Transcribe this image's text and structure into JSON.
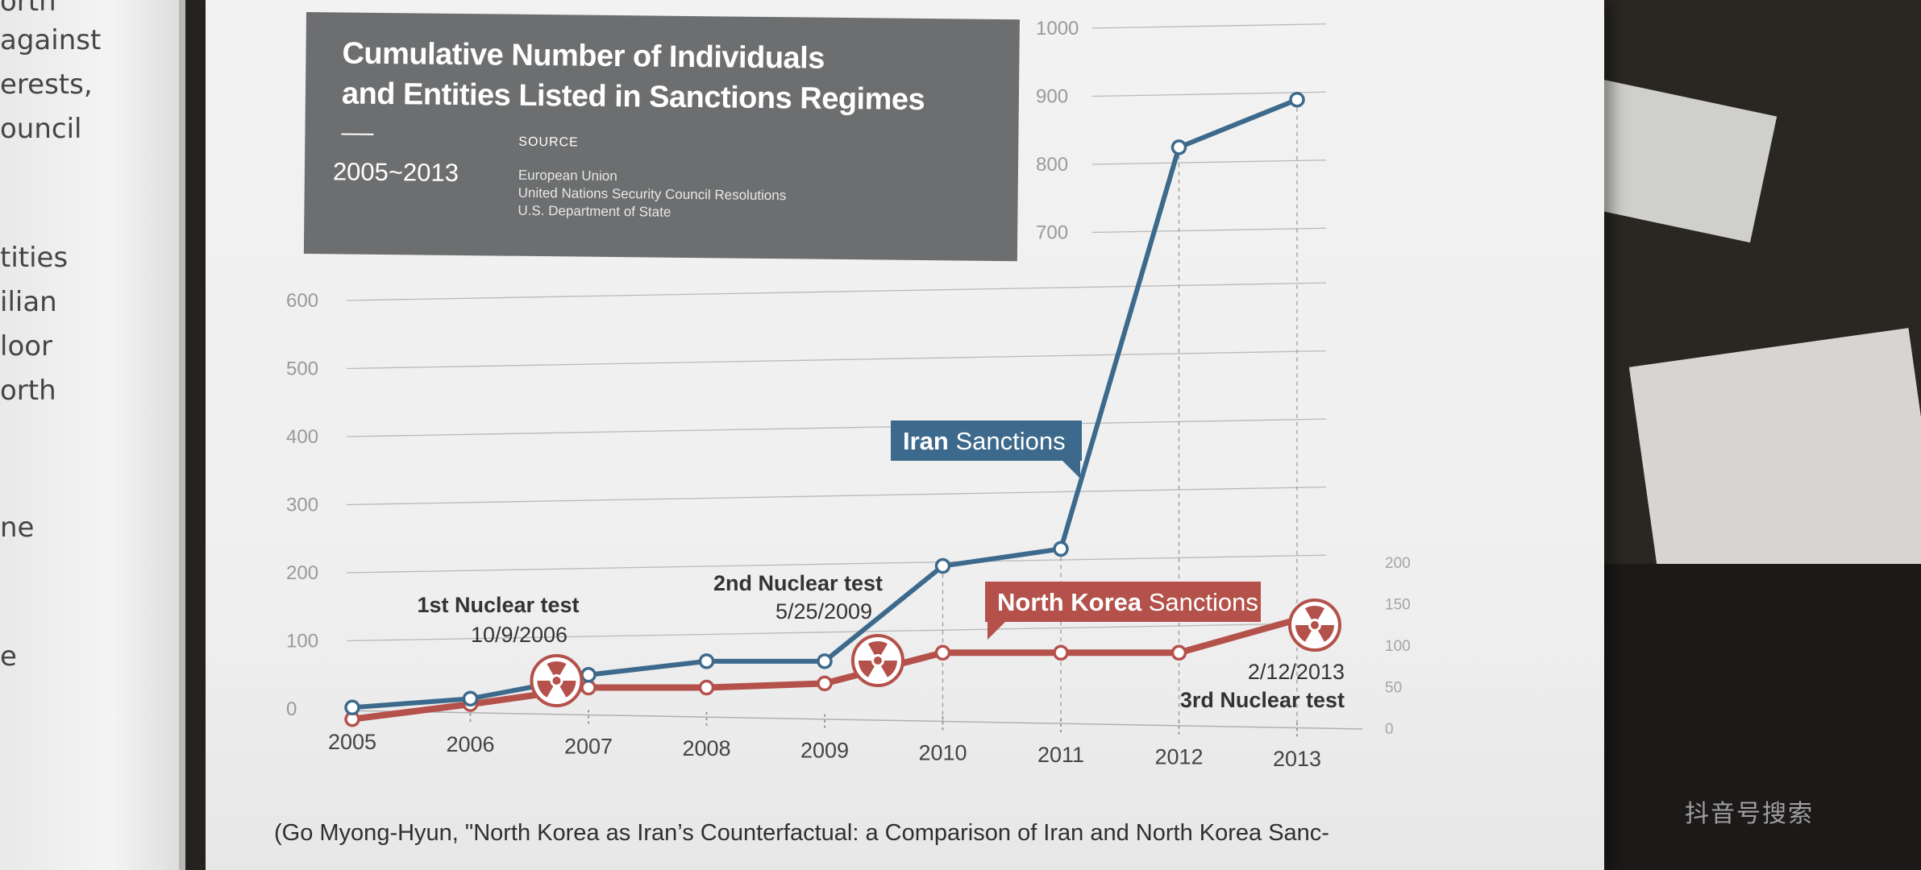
{
  "left_page": {
    "fragments": [
      "orth",
      "against",
      "erests,",
      "ouncil",
      "tities",
      "ilian",
      "loor",
      "orth",
      "ne",
      "e"
    ]
  },
  "title_box": {
    "title_line1": "Cumulative Number of Individuals",
    "title_line2": "and Entities Listed in Sanctions Regimes",
    "years": "2005~2013",
    "source_label": "SOURCE",
    "sources": [
      "European Union",
      "United Nations Security Council Resolutions",
      "U.S. Department of State"
    ]
  },
  "caption": "(Go Myong-Hyun, \"North Korea as Iran’s Counterfactual: a Comparison of Iran and North Korea Sanc-",
  "watermark": "抖音号搜索",
  "colors": {
    "iran": "#3d6a8c",
    "north_korea": "#b4514b",
    "title_box": "#6d6e6f",
    "nuke_icon": "#b4514b"
  },
  "chart_data": {
    "type": "line",
    "title": "Cumulative Number of Individuals and Entities Listed in Sanctions Regimes",
    "x": [
      2005,
      2006,
      2007,
      2008,
      2009,
      2010,
      2011,
      2012,
      2013
    ],
    "x_ticks": [
      "2005",
      "2006",
      "2007",
      "2008",
      "2009",
      "2010",
      "2011",
      "2012",
      "2013"
    ],
    "left_axis": {
      "ticks": [
        0,
        100,
        200,
        300,
        400,
        500,
        600,
        700,
        800,
        900,
        1000
      ],
      "range": [
        0,
        1000
      ]
    },
    "right_axis": {
      "ticks": [
        0,
        50,
        100,
        150,
        200
      ],
      "range": [
        0,
        200
      ]
    },
    "series": [
      {
        "name": "Iran Sanctions",
        "name_bold": "Iran",
        "name_rest": " Sanctions",
        "axis": "left",
        "points": [
          [
            2005,
            2
          ],
          [
            2006,
            15
          ],
          [
            2006.7,
            38
          ],
          [
            2007,
            50
          ],
          [
            2008,
            70
          ],
          [
            2009,
            70
          ],
          [
            2010,
            210
          ],
          [
            2011,
            235
          ],
          [
            2012,
            825
          ],
          [
            2013,
            895
          ]
        ]
      },
      {
        "name": "North Korea Sanctions",
        "name_bold": "North Korea",
        "name_rest": " Sanctions",
        "axis": "right",
        "points": [
          [
            2005,
            10
          ],
          [
            2006,
            28
          ],
          [
            2007,
            48
          ],
          [
            2008,
            48
          ],
          [
            2009,
            53
          ],
          [
            2010,
            90
          ],
          [
            2011,
            90
          ],
          [
            2012,
            90
          ],
          [
            2013,
            130
          ]
        ]
      }
    ],
    "annotations": [
      {
        "line1": "1st Nuclear test",
        "line2": "10/9/2006",
        "x": 2006.75
      },
      {
        "line1": "2nd Nuclear test",
        "line2": "5/25/2009",
        "x": 2009.4
      },
      {
        "line1": "2/12/2013",
        "line2": "3rd Nuclear test",
        "x": 2013.15
      }
    ]
  }
}
